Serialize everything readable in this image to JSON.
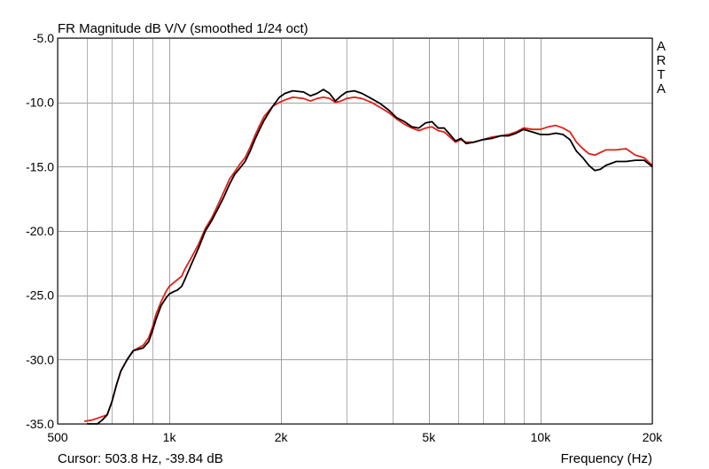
{
  "chart_data": {
    "type": "line",
    "title": "FR Magnitude dB V/V (smoothed 1/24 oct)",
    "brand": "ARTA",
    "xlabel": "Frequency (Hz)",
    "ylabel": "",
    "cursor_readout": "Cursor: 503.8 Hz, -39.84 dB",
    "x_scale": "log",
    "xlim": [
      500,
      20000
    ],
    "ylim": [
      -35,
      -5
    ],
    "x_ticks": [
      {
        "value": 500,
        "label": "500"
      },
      {
        "value": 1000,
        "label": "1k"
      },
      {
        "value": 2000,
        "label": "2k"
      },
      {
        "value": 5000,
        "label": "5k"
      },
      {
        "value": 10000,
        "label": "10k"
      },
      {
        "value": 20000,
        "label": "20k"
      }
    ],
    "x_minor_gridlines": [
      600,
      700,
      800,
      900,
      3000,
      4000,
      6000,
      7000,
      8000,
      9000
    ],
    "y_ticks": [
      {
        "value": -5,
        "label": "-5.0"
      },
      {
        "value": -10,
        "label": "-10.0"
      },
      {
        "value": -15,
        "label": "-15.0"
      },
      {
        "value": -20,
        "label": "-20.0"
      },
      {
        "value": -25,
        "label": "-25.0"
      },
      {
        "value": -30,
        "label": "-30.0"
      },
      {
        "value": -35,
        "label": "-35.0"
      }
    ],
    "grid": true,
    "legend": "none",
    "series": [
      {
        "color": "#000000",
        "points": [
          [
            600,
            -35.0
          ],
          [
            640,
            -35.0
          ],
          [
            660,
            -34.7
          ],
          [
            680,
            -34.3
          ],
          [
            700,
            -33.3
          ],
          [
            720,
            -32.0
          ],
          [
            740,
            -30.9
          ],
          [
            770,
            -30.0
          ],
          [
            800,
            -29.3
          ],
          [
            850,
            -29.1
          ],
          [
            880,
            -28.6
          ],
          [
            900,
            -27.8
          ],
          [
            920,
            -26.9
          ],
          [
            950,
            -25.8
          ],
          [
            980,
            -25.2
          ],
          [
            1000,
            -24.9
          ],
          [
            1030,
            -24.7
          ],
          [
            1050,
            -24.6
          ],
          [
            1080,
            -24.3
          ],
          [
            1100,
            -23.8
          ],
          [
            1150,
            -22.5
          ],
          [
            1200,
            -21.3
          ],
          [
            1250,
            -20.0
          ],
          [
            1300,
            -19.2
          ],
          [
            1350,
            -18.3
          ],
          [
            1400,
            -17.4
          ],
          [
            1450,
            -16.4
          ],
          [
            1500,
            -15.6
          ],
          [
            1550,
            -15.1
          ],
          [
            1600,
            -14.6
          ],
          [
            1650,
            -13.8
          ],
          [
            1700,
            -12.9
          ],
          [
            1750,
            -12.1
          ],
          [
            1800,
            -11.4
          ],
          [
            1900,
            -10.3
          ],
          [
            1980,
            -9.6
          ],
          [
            2050,
            -9.3
          ],
          [
            2150,
            -9.1
          ],
          [
            2300,
            -9.2
          ],
          [
            2400,
            -9.5
          ],
          [
            2500,
            -9.3
          ],
          [
            2600,
            -9.0
          ],
          [
            2700,
            -9.3
          ],
          [
            2800,
            -9.9
          ],
          [
            2900,
            -9.5
          ],
          [
            3000,
            -9.2
          ],
          [
            3150,
            -9.1
          ],
          [
            3300,
            -9.3
          ],
          [
            3500,
            -9.7
          ],
          [
            3700,
            -10.1
          ],
          [
            3900,
            -10.6
          ],
          [
            4100,
            -11.2
          ],
          [
            4300,
            -11.5
          ],
          [
            4500,
            -11.9
          ],
          [
            4700,
            -12.0
          ],
          [
            4900,
            -11.6
          ],
          [
            5100,
            -11.5
          ],
          [
            5300,
            -12.0
          ],
          [
            5500,
            -12.0
          ],
          [
            5700,
            -12.5
          ],
          [
            5900,
            -13.0
          ],
          [
            6100,
            -12.8
          ],
          [
            6300,
            -13.2
          ],
          [
            6600,
            -13.1
          ],
          [
            7000,
            -12.9
          ],
          [
            7400,
            -12.8
          ],
          [
            7800,
            -12.6
          ],
          [
            8200,
            -12.6
          ],
          [
            8600,
            -12.4
          ],
          [
            9000,
            -12.1
          ],
          [
            9500,
            -12.3
          ],
          [
            10000,
            -12.5
          ],
          [
            10500,
            -12.5
          ],
          [
            11000,
            -12.4
          ],
          [
            11500,
            -12.5
          ],
          [
            12000,
            -12.9
          ],
          [
            12500,
            -13.8
          ],
          [
            13000,
            -14.3
          ],
          [
            13500,
            -14.9
          ],
          [
            14000,
            -15.3
          ],
          [
            14500,
            -15.2
          ],
          [
            15000,
            -14.9
          ],
          [
            16000,
            -14.6
          ],
          [
            17000,
            -14.6
          ],
          [
            18000,
            -14.5
          ],
          [
            19000,
            -14.5
          ],
          [
            20000,
            -15.0
          ]
        ]
      },
      {
        "color": "#e0201a",
        "points": [
          [
            590,
            -34.8
          ],
          [
            620,
            -34.7
          ],
          [
            650,
            -34.5
          ],
          [
            680,
            -34.3
          ],
          [
            700,
            -33.3
          ],
          [
            720,
            -32.0
          ],
          [
            740,
            -30.9
          ],
          [
            770,
            -30.0
          ],
          [
            800,
            -29.3
          ],
          [
            850,
            -28.9
          ],
          [
            880,
            -28.3
          ],
          [
            900,
            -27.5
          ],
          [
            920,
            -26.5
          ],
          [
            950,
            -25.5
          ],
          [
            980,
            -24.7
          ],
          [
            1000,
            -24.3
          ],
          [
            1030,
            -24.0
          ],
          [
            1050,
            -23.8
          ],
          [
            1080,
            -23.5
          ],
          [
            1100,
            -23.0
          ],
          [
            1150,
            -22.0
          ],
          [
            1200,
            -21.0
          ],
          [
            1250,
            -19.8
          ],
          [
            1300,
            -19.0
          ],
          [
            1350,
            -18.0
          ],
          [
            1400,
            -17.0
          ],
          [
            1450,
            -16.0
          ],
          [
            1500,
            -15.4
          ],
          [
            1550,
            -14.8
          ],
          [
            1600,
            -14.3
          ],
          [
            1650,
            -13.5
          ],
          [
            1700,
            -12.6
          ],
          [
            1750,
            -11.8
          ],
          [
            1800,
            -11.1
          ],
          [
            1900,
            -10.3
          ],
          [
            1980,
            -10.0
          ],
          [
            2050,
            -9.8
          ],
          [
            2150,
            -9.6
          ],
          [
            2300,
            -9.7
          ],
          [
            2400,
            -9.9
          ],
          [
            2500,
            -9.7
          ],
          [
            2600,
            -9.6
          ],
          [
            2700,
            -9.7
          ],
          [
            2800,
            -10.0
          ],
          [
            2900,
            -9.9
          ],
          [
            3000,
            -9.7
          ],
          [
            3150,
            -9.6
          ],
          [
            3300,
            -9.7
          ],
          [
            3500,
            -10.0
          ],
          [
            3700,
            -10.4
          ],
          [
            3900,
            -10.8
          ],
          [
            4100,
            -11.3
          ],
          [
            4300,
            -11.7
          ],
          [
            4500,
            -12.0
          ],
          [
            4700,
            -12.2
          ],
          [
            4900,
            -12.0
          ],
          [
            5100,
            -11.9
          ],
          [
            5300,
            -12.2
          ],
          [
            5500,
            -12.3
          ],
          [
            5700,
            -12.7
          ],
          [
            5900,
            -13.1
          ],
          [
            6100,
            -12.9
          ],
          [
            6300,
            -13.1
          ],
          [
            6600,
            -13.1
          ],
          [
            7000,
            -12.9
          ],
          [
            7400,
            -12.7
          ],
          [
            7800,
            -12.6
          ],
          [
            8200,
            -12.5
          ],
          [
            8600,
            -12.3
          ],
          [
            9000,
            -12.0
          ],
          [
            9500,
            -12.1
          ],
          [
            10000,
            -12.1
          ],
          [
            10500,
            -11.9
          ],
          [
            11000,
            -11.8
          ],
          [
            11500,
            -12.0
          ],
          [
            12000,
            -12.3
          ],
          [
            12500,
            -13.1
          ],
          [
            13000,
            -13.6
          ],
          [
            13500,
            -14.0
          ],
          [
            14000,
            -14.1
          ],
          [
            14500,
            -13.9
          ],
          [
            15000,
            -13.7
          ],
          [
            16000,
            -13.7
          ],
          [
            17000,
            -13.6
          ],
          [
            18000,
            -14.1
          ],
          [
            19000,
            -14.3
          ],
          [
            20000,
            -14.9
          ]
        ]
      }
    ]
  }
}
